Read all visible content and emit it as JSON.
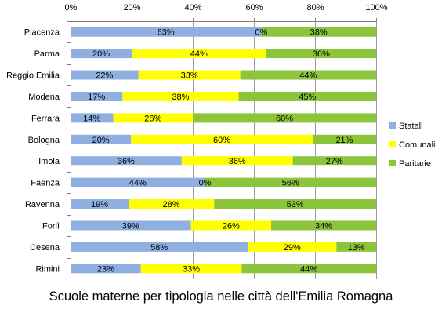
{
  "colors": {
    "Statali": "#8EAFE0",
    "Comunali": "#FFFF00",
    "Paritarie": "#8CC43C",
    "grid": "#9A9A9A",
    "axis": "#808080"
  },
  "chart_data": {
    "type": "bar",
    "orientation": "horizontal",
    "stacked": "percent",
    "title": "Scuole materne per tipologia nelle città dell'Emilia Romagna",
    "categories": [
      "Piacenza",
      "Parma",
      "Reggio Emilia",
      "Modena",
      "Ferrara",
      "Bologna",
      "Imola",
      "Faenza",
      "Ravenna",
      "Forlì",
      "Cesena",
      "Rimini"
    ],
    "series": [
      {
        "name": "Statali",
        "values": [
          63,
          20,
          22,
          17,
          14,
          20,
          36,
          44,
          19,
          39,
          58,
          23
        ]
      },
      {
        "name": "Comunali",
        "values": [
          0,
          44,
          33,
          38,
          26,
          60,
          36,
          0,
          28,
          26,
          29,
          33
        ]
      },
      {
        "name": "Paritarie",
        "values": [
          38,
          36,
          44,
          45,
          60,
          21,
          27,
          56,
          53,
          34,
          13,
          44
        ]
      }
    ],
    "x_ticks": [
      "0%",
      "20%",
      "40%",
      "60%",
      "80%",
      "100%"
    ],
    "xlim": [
      0,
      100
    ],
    "xaxis_position": "top",
    "grid": true,
    "legend_position": "right",
    "data_labels": [
      [
        "63%",
        "0%",
        "38%"
      ],
      [
        "20%",
        "44%",
        "36%"
      ],
      [
        "22%",
        "33%",
        "44%"
      ],
      [
        "17%",
        "38%",
        "45%"
      ],
      [
        "14%",
        "26%",
        "60%"
      ],
      [
        "20%",
        "60%",
        "21%"
      ],
      [
        "36%",
        "36%",
        "27%"
      ],
      [
        "44%",
        "0%",
        "56%"
      ],
      [
        "19%",
        "28%",
        "53%"
      ],
      [
        "39%",
        "26%",
        "34%"
      ],
      [
        "58%",
        "29%",
        "13%"
      ],
      [
        "23%",
        "33%",
        "44%"
      ]
    ]
  }
}
